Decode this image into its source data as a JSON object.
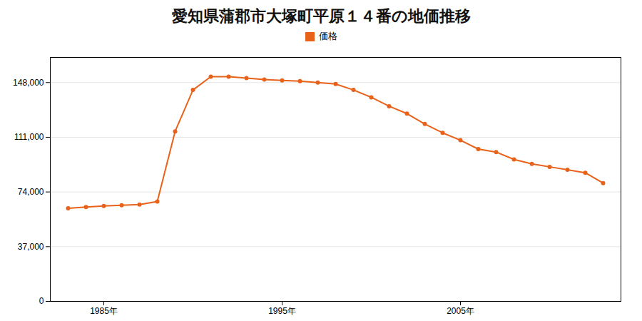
{
  "chart_data": {
    "type": "line",
    "title": "愛知県蒲郡市大塚町平原１４番の地価推移",
    "x": [
      1983,
      1984,
      1985,
      1986,
      1987,
      1988,
      1989,
      1990,
      1991,
      1992,
      1993,
      1994,
      1995,
      1996,
      1997,
      1998,
      1999,
      2000,
      2001,
      2002,
      2003,
      2004,
      2005,
      2006,
      2007,
      2008,
      2009,
      2010,
      2011,
      2012,
      2013
    ],
    "series": [
      {
        "name": "価格",
        "color": "#E8621A",
        "marker": "circle",
        "values": [
          63000,
          63800,
          64500,
          65000,
          65500,
          67500,
          115000,
          143000,
          152000,
          152000,
          151000,
          150000,
          149500,
          149000,
          148000,
          147000,
          143000,
          138000,
          132000,
          127000,
          120000,
          114000,
          109000,
          103000,
          101000,
          96000,
          93000,
          91000,
          89000,
          87000,
          80000
        ]
      }
    ],
    "xlim": [
      1982,
      2014
    ],
    "xticks": [
      {
        "value": 1985,
        "label": "1985年"
      },
      {
        "value": 1995,
        "label": "1995年"
      },
      {
        "value": 2005,
        "label": "2005年"
      }
    ],
    "ylim": [
      0,
      165000
    ],
    "yticks": [
      0,
      {
        "value": 37000,
        "label": "37,000"
      },
      {
        "value": 74000,
        "label": "74,000"
      },
      {
        "value": 111000,
        "label": "111,000"
      },
      {
        "value": 148000,
        "label": "148,000"
      }
    ],
    "grid": true,
    "legend": "top"
  }
}
